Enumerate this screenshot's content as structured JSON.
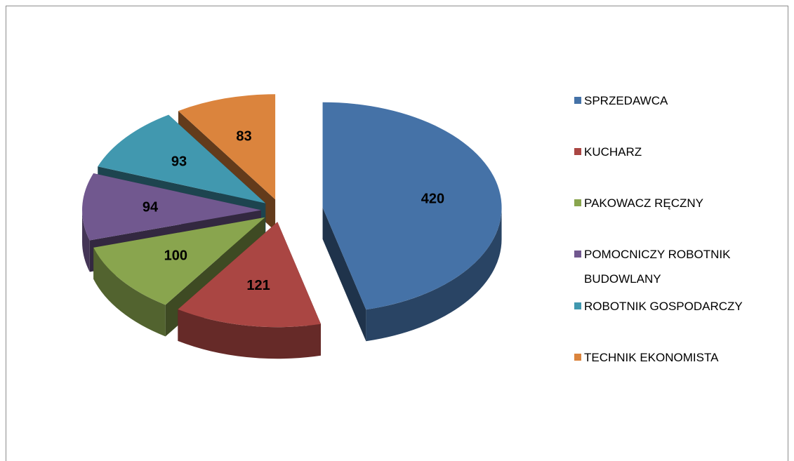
{
  "chart_data": {
    "type": "pie",
    "categories": [
      "SPRZEDAWCA",
      "KUCHARZ",
      "PAKOWACZ RĘCZNY",
      "POMOCNICZY ROBOTNIK BUDOWLANY",
      "ROBOTNIK GOSPODARCZY",
      "TECHNIK EKONOMISTA"
    ],
    "values": [
      420,
      121,
      100,
      94,
      93,
      83
    ],
    "colors": [
      "#4572a7",
      "#aa4643",
      "#89a54e",
      "#71588f",
      "#4198af",
      "#db843d"
    ],
    "legend": "right"
  }
}
